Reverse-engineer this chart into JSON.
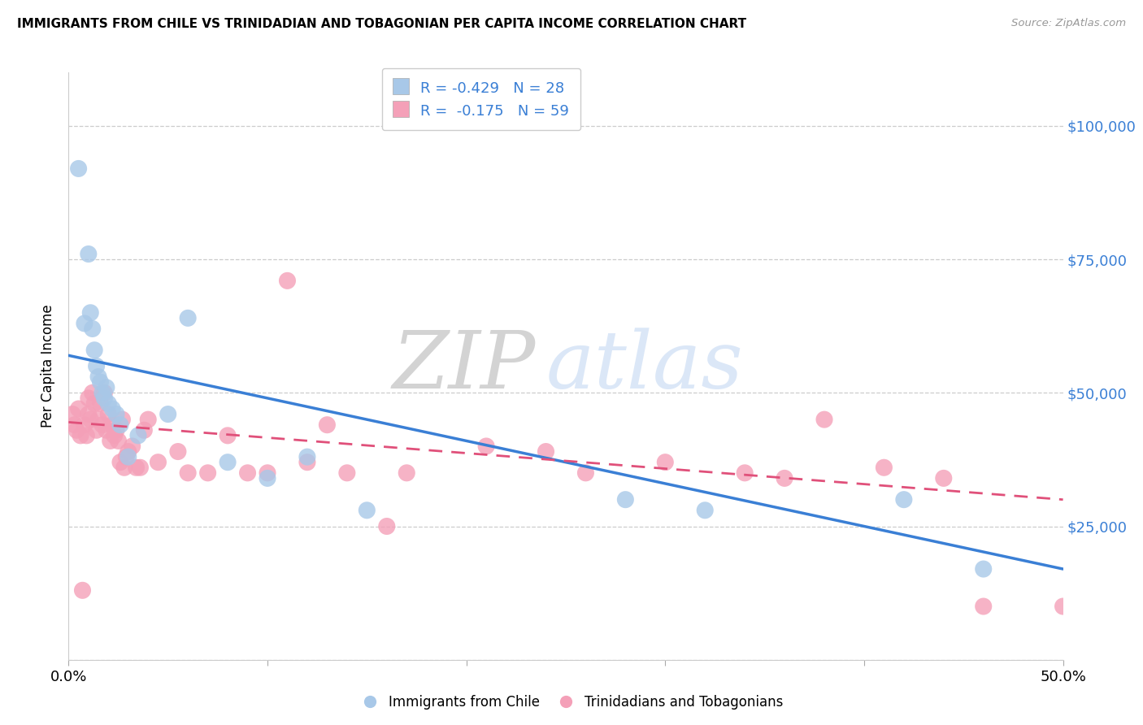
{
  "title": "IMMIGRANTS FROM CHILE VS TRINIDADIAN AND TOBAGONIAN PER CAPITA INCOME CORRELATION CHART",
  "source": "Source: ZipAtlas.com",
  "ylabel": "Per Capita Income",
  "blue_color": "#a8c8e8",
  "pink_color": "#f4a0b8",
  "blue_line_color": "#3a7fd5",
  "pink_line_color": "#e0507a",
  "watermark_zip_color": "#cccccc",
  "watermark_atlas_color": "#b8d4f0",
  "blue_scatter_x": [
    0.005,
    0.008,
    0.01,
    0.011,
    0.012,
    0.013,
    0.014,
    0.015,
    0.016,
    0.017,
    0.018,
    0.019,
    0.02,
    0.022,
    0.024,
    0.026,
    0.03,
    0.035,
    0.05,
    0.06,
    0.08,
    0.1,
    0.12,
    0.15,
    0.28,
    0.32,
    0.42,
    0.46
  ],
  "blue_scatter_y": [
    92000,
    63000,
    76000,
    65000,
    62000,
    58000,
    55000,
    53000,
    52000,
    50000,
    49000,
    51000,
    48000,
    47000,
    46000,
    44000,
    38000,
    42000,
    46000,
    64000,
    37000,
    34000,
    38000,
    28000,
    30000,
    28000,
    30000,
    17000
  ],
  "pink_scatter_x": [
    0.002,
    0.003,
    0.004,
    0.005,
    0.006,
    0.007,
    0.008,
    0.009,
    0.01,
    0.01,
    0.011,
    0.012,
    0.013,
    0.014,
    0.015,
    0.016,
    0.017,
    0.018,
    0.019,
    0.02,
    0.021,
    0.022,
    0.023,
    0.024,
    0.025,
    0.026,
    0.027,
    0.028,
    0.029,
    0.03,
    0.032,
    0.034,
    0.036,
    0.038,
    0.04,
    0.045,
    0.055,
    0.06,
    0.07,
    0.08,
    0.09,
    0.1,
    0.11,
    0.12,
    0.13,
    0.14,
    0.16,
    0.17,
    0.21,
    0.24,
    0.26,
    0.3,
    0.34,
    0.36,
    0.38,
    0.41,
    0.44,
    0.46,
    0.5
  ],
  "pink_scatter_y": [
    46000,
    44000,
    43000,
    47000,
    42000,
    13000,
    44000,
    42000,
    46000,
    49000,
    45000,
    50000,
    48000,
    43000,
    45000,
    48000,
    44000,
    50000,
    43000,
    46000,
    41000,
    44000,
    42000,
    43000,
    41000,
    37000,
    45000,
    36000,
    38000,
    39000,
    40000,
    36000,
    36000,
    43000,
    45000,
    37000,
    39000,
    35000,
    35000,
    42000,
    35000,
    35000,
    71000,
    37000,
    44000,
    35000,
    25000,
    35000,
    40000,
    39000,
    35000,
    37000,
    35000,
    34000,
    45000,
    36000,
    34000,
    10000,
    10000
  ],
  "blue_line_x0": 0.0,
  "blue_line_x1": 0.5,
  "blue_line_y0": 57000,
  "blue_line_y1": 17000,
  "pink_line_x0": 0.0,
  "pink_line_x1": 0.5,
  "pink_line_y0": 44500,
  "pink_line_y1": 30000,
  "xlim": [
    0.0,
    0.5
  ],
  "ylim": [
    0,
    110000
  ],
  "yticks": [
    0,
    25000,
    50000,
    75000,
    100000
  ],
  "ytick_labels": [
    "",
    "$25,000",
    "$50,000",
    "$75,000",
    "$100,000"
  ],
  "xticks": [
    0.0,
    0.1,
    0.2,
    0.3,
    0.4,
    0.5
  ],
  "xtick_labels": [
    "0.0%",
    "",
    "",
    "",
    "",
    "50.0%"
  ],
  "grid_color": "#cccccc",
  "background_color": "#ffffff",
  "legend1_label": "Immigrants from Chile",
  "legend2_label": "Trinidadians and Tobagonians",
  "legend_R1": "R = -0.429",
  "legend_N1": "N = 28",
  "legend_R2": "R =  -0.175",
  "legend_N2": "N = 59"
}
